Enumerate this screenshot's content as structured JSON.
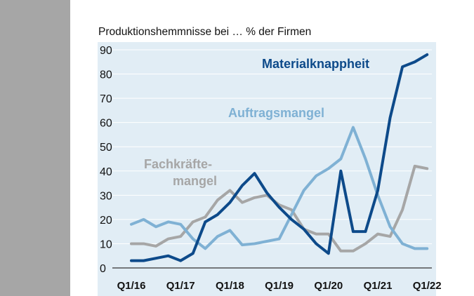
{
  "chart_data": {
    "type": "line",
    "title": "Produktionshemmnisse bei … % der Firmen",
    "x": [
      "Q1/16",
      "Q2/16",
      "Q3/16",
      "Q4/16",
      "Q1/17",
      "Q2/17",
      "Q3/17",
      "Q4/17",
      "Q1/18",
      "Q2/18",
      "Q3/18",
      "Q4/18",
      "Q1/19",
      "Q2/19",
      "Q3/19",
      "Q4/19",
      "Q1/20",
      "Q2/20",
      "Q3/20",
      "Q4/20",
      "Q1/21",
      "Q2/21",
      "Q3/21",
      "Q4/21",
      "Q1/22"
    ],
    "xticks": [
      "Q1/16",
      "Q1/17",
      "Q1/18",
      "Q1/19",
      "Q1/20",
      "Q1/21",
      "Q1/22"
    ],
    "ylim": [
      0,
      90
    ],
    "yticks": [
      0,
      10,
      20,
      30,
      40,
      50,
      60,
      70,
      80,
      90
    ],
    "grid": true,
    "background": "#e1edf5",
    "series": [
      {
        "name": "Materialknappheit",
        "color": "#0d4a8a",
        "values": [
          3,
          3,
          4,
          5,
          3,
          6,
          19,
          22,
          27,
          34,
          39,
          31,
          25,
          20,
          16,
          10,
          6,
          40,
          15,
          15,
          32,
          62,
          83,
          85,
          88
        ]
      },
      {
        "name": "Auftragsmangel",
        "color": "#7fb1d4",
        "values": [
          18,
          20,
          17,
          19,
          18,
          12,
          8,
          13,
          15.5,
          9.5,
          10,
          11,
          12,
          22,
          32,
          38,
          41,
          45,
          58,
          45,
          30,
          17,
          10,
          8,
          8
        ]
      },
      {
        "name_lines": [
          "Fachkräfte-",
          "mangel"
        ],
        "color": "#a6a6a6",
        "values": [
          10,
          10,
          9,
          12,
          13,
          19,
          21,
          28,
          32,
          27,
          29,
          30,
          26,
          24,
          16,
          14,
          14,
          7,
          7,
          10,
          14,
          13,
          24,
          42,
          41
        ]
      }
    ]
  }
}
